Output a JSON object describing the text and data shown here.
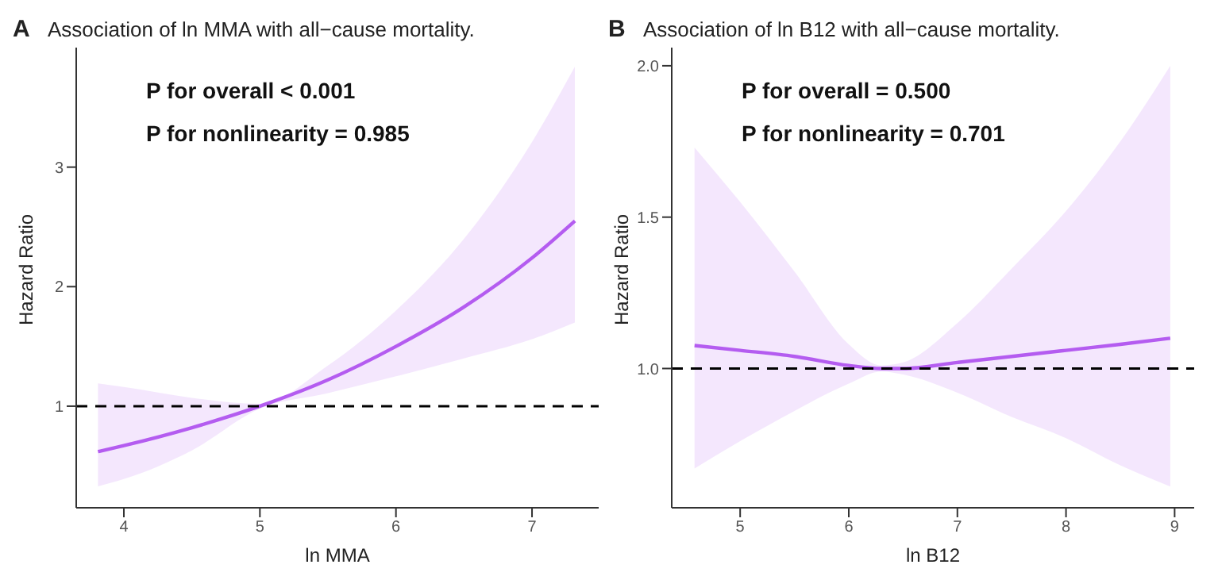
{
  "chart_data": [
    {
      "type": "line",
      "title": "Association of ln MMA with all−cause mortality.",
      "xlabel": "ln MMA",
      "ylabel": "Hazard Ratio",
      "annotations": [
        "A",
        "P for overall < 0.001",
        "P for nonlinearity = 0.985"
      ],
      "x": [
        3.81,
        4,
        4.5,
        5,
        5.5,
        6,
        6.5,
        7,
        7.315
      ],
      "series": [
        {
          "color": "#b45cf0",
          "values": [
            0.62,
            0.67,
            0.82,
            1,
            1.22,
            1.5,
            1.83,
            2.24,
            2.55
          ],
          "lower": [
            0.33,
            0.39,
            0.63,
            0.98,
            1.11,
            1.25,
            1.4,
            1.56,
            1.7
          ],
          "upper": [
            1.19,
            1.16,
            1.07,
            1.02,
            1.34,
            1.8,
            2.4,
            3.21,
            3.84
          ]
        }
      ],
      "ref_lines": [
        {
          "axis": "y",
          "value": 1,
          "color": "#000000",
          "line_style": "dashed"
        }
      ],
      "xlim": [
        3.65,
        7.49
      ],
      "xticks": [
        4,
        5,
        6,
        7
      ],
      "ylim": [
        0.15,
        4.0
      ],
      "yticks": [
        1,
        2,
        3
      ],
      "grid": false,
      "marker": "none"
    },
    {
      "type": "line",
      "title": "Association of ln B12 with all−cause mortality.",
      "xlabel": "ln B12",
      "ylabel": "Hazard Ratio",
      "annotations": [
        "B",
        "P for overall = 0.500",
        "P for nonlinearity = 0.701"
      ],
      "x": [
        4.58,
        5,
        5.5,
        6,
        6.3,
        6.5,
        7,
        7.5,
        8,
        8.5,
        8.96
      ],
      "series": [
        {
          "color": "#b45cf0",
          "values": [
            1.076,
            1.06,
            1.04,
            1.01,
            1.0,
            1.0,
            1.02,
            1.04,
            1.06,
            1.08,
            1.1
          ],
          "lower": [
            0.67,
            0.76,
            0.86,
            0.95,
            0.99,
            0.98,
            0.92,
            0.84,
            0.77,
            0.68,
            0.61
          ],
          "upper": [
            1.73,
            1.55,
            1.32,
            1.08,
            1.01,
            1.02,
            1.15,
            1.33,
            1.52,
            1.75,
            2.0
          ]
        }
      ],
      "ref_lines": [
        {
          "axis": "y",
          "value": 1,
          "color": "#000000",
          "line_style": "dashed"
        }
      ],
      "xlim": [
        4.37,
        9.18
      ],
      "xticks": [
        5,
        6,
        7,
        8,
        9
      ],
      "ylim": [
        0.54,
        2.06
      ],
      "yticks": [
        {
          "value": 1,
          "label": "1.0"
        },
        {
          "value": 1.5,
          "label": "1.5"
        },
        {
          "value": 2,
          "label": "2.0"
        }
      ],
      "grid": false,
      "marker": "none"
    }
  ]
}
